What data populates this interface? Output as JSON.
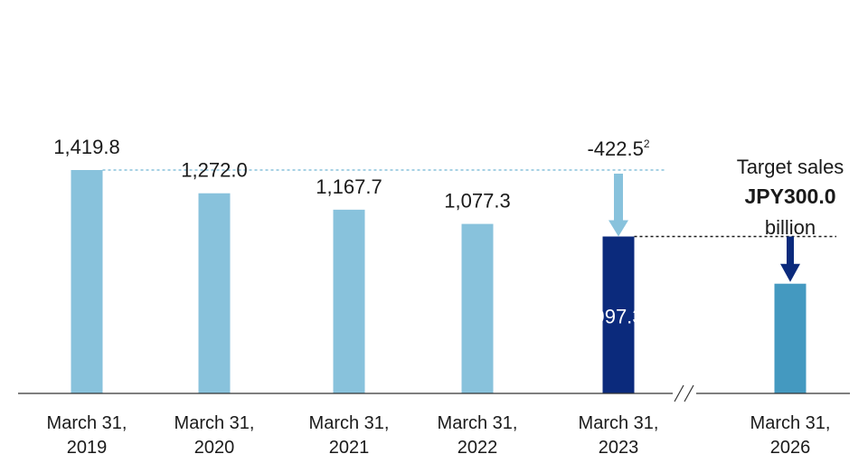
{
  "chart_data": {
    "type": "bar",
    "categories": [
      [
        "March 31,",
        "2019"
      ],
      [
        "March 31,",
        "2020"
      ],
      [
        "March 31,",
        "2021"
      ],
      [
        "March 31,",
        "2022"
      ],
      [
        "March 31,",
        "2023"
      ],
      [
        "March 31,",
        "2026"
      ]
    ],
    "values": [
      1419.8,
      1272.0,
      1167.7,
      1077.3,
      997.3,
      697.3
    ],
    "value_labels": [
      "1,419.8",
      "1,272.0",
      "1,167.7",
      "1,077.3",
      "997.3",
      ""
    ],
    "reduction_label": "-422.5",
    "reduction_footnote": "2",
    "target_annotation": [
      "Target sales",
      "JPY300.0",
      "billion"
    ],
    "axis_break_between": [
      "2023",
      "2026"
    ],
    "colors": {
      "history": "#88c2dc",
      "current": "#0b2a7c",
      "target": "#4499c0",
      "reduction_arrow": "#88c2dc",
      "target_arrow": "#0b2a7c",
      "guide_history": "#88c2dc",
      "guide_target": "#1a1a1a"
    },
    "ylim": [
      0,
      1419.8
    ],
    "grid": false
  }
}
